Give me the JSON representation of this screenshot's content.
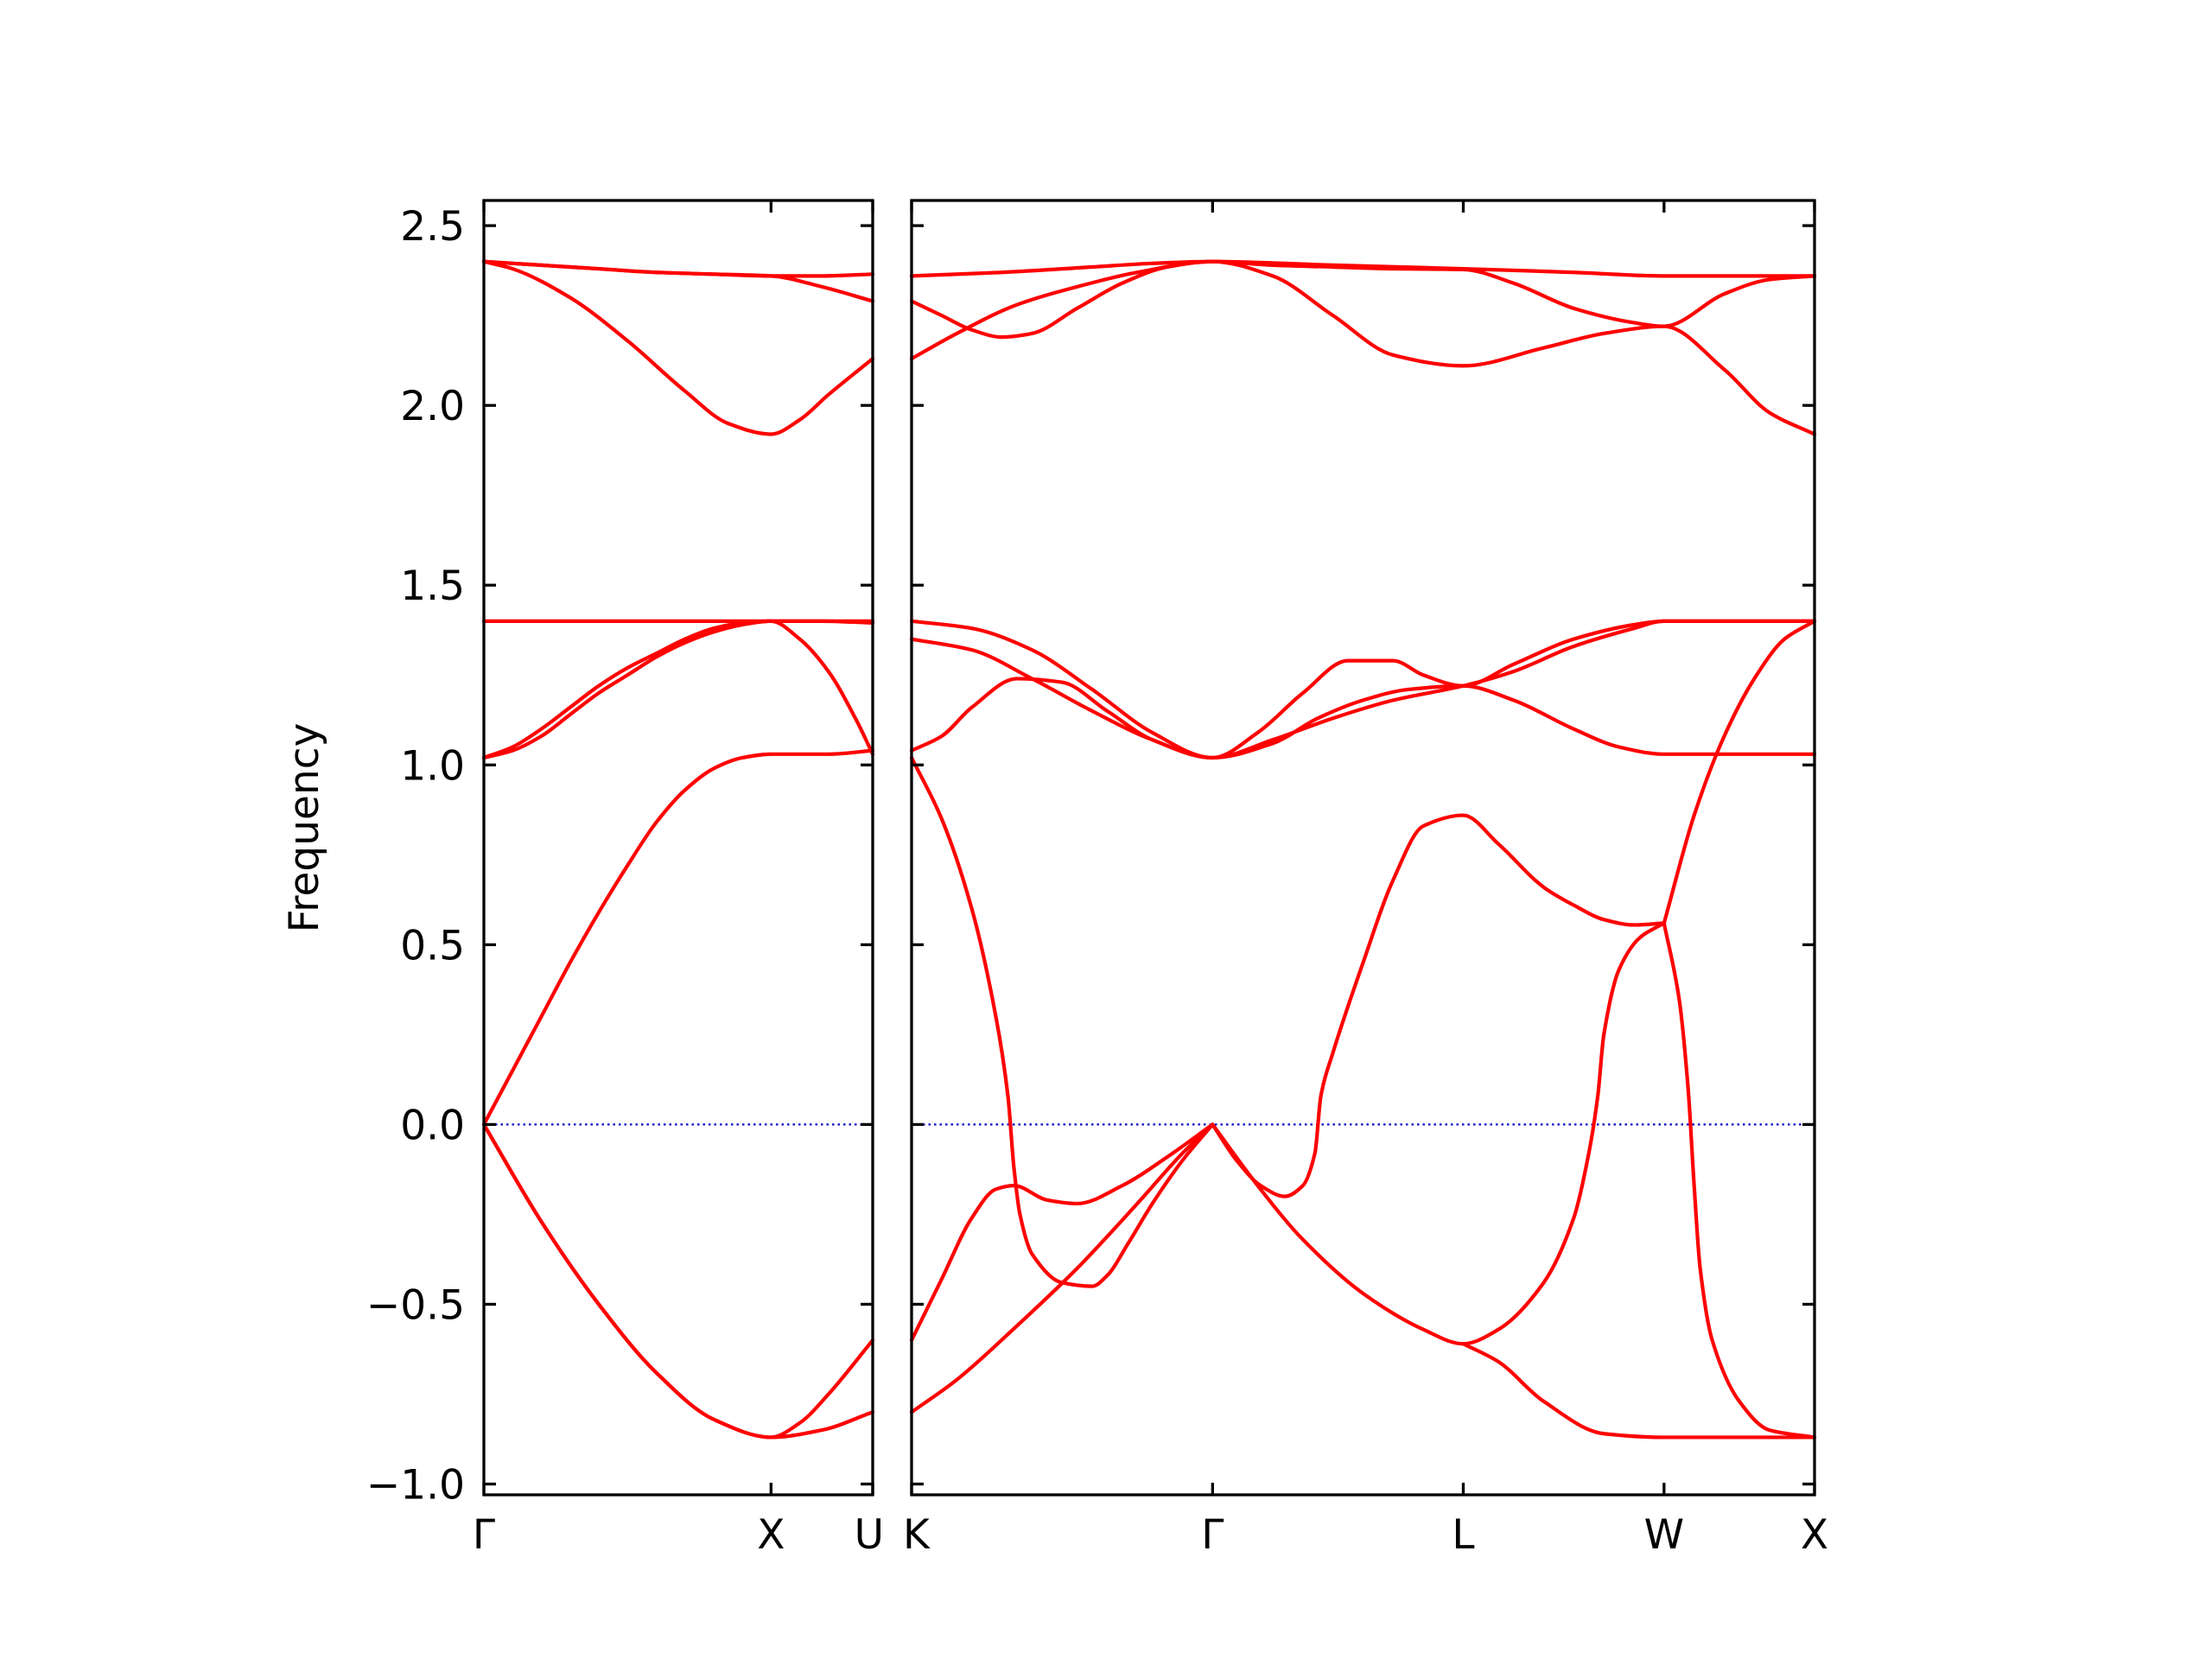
{
  "chart_data": {
    "type": "line",
    "title": "",
    "ylabel": "Frequency",
    "xlabel": "",
    "ylim": [
      -1.03,
      2.57
    ],
    "yticks": [
      -1.0,
      -0.5,
      0.0,
      0.5,
      1.0,
      1.5,
      2.0,
      2.5
    ],
    "ytick_labels": [
      "−1.0",
      "−0.5",
      "0.0",
      "0.5",
      "1.0",
      "1.5",
      "2.0",
      "2.5"
    ],
    "grid": false,
    "legend": "none",
    "colors": {
      "bands": "#ff0000",
      "zero_line": "#0000cc",
      "axes": "#000000"
    },
    "panels": [
      {
        "xlim": [
          0,
          1.354
        ],
        "xticks": [
          0.0,
          1.0,
          1.354
        ],
        "xtick_labels": [
          "Γ",
          "X",
          "U"
        ],
        "zero_line": true,
        "bands": [
          {
            "x": [
              0,
              0.2,
              0.4,
              0.6,
              0.8,
              1.0,
              1.177,
              1.354
            ],
            "y": [
              0,
              -0.27,
              -0.5,
              -0.69,
              -0.82,
              -0.87,
              -0.85,
              -0.8
            ]
          },
          {
            "x": [
              0,
              0.2,
              0.4,
              0.6,
              0.8,
              1.0,
              1.1,
              1.2,
              1.354
            ],
            "y": [
              0,
              -0.27,
              -0.5,
              -0.69,
              -0.82,
              -0.87,
              -0.83,
              -0.75,
              -0.6
            ]
          },
          {
            "x": [
              0,
              0.1,
              0.2,
              0.3,
              0.4,
              0.5,
              0.6,
              0.7,
              0.8,
              0.9,
              1.0,
              1.2,
              1.354
            ],
            "y": [
              0,
              0.15,
              0.3,
              0.45,
              0.59,
              0.72,
              0.84,
              0.93,
              0.99,
              1.02,
              1.03,
              1.03,
              1.04
            ]
          },
          {
            "x": [
              0,
              0.1,
              0.2,
              0.3,
              0.4,
              0.5,
              0.6,
              0.7,
              0.8,
              0.9,
              1.0,
              1.177,
              1.354
            ],
            "y": [
              1.02,
              1.05,
              1.1,
              1.16,
              1.22,
              1.27,
              1.31,
              1.35,
              1.38,
              1.395,
              1.4,
              1.4,
              1.395
            ]
          },
          {
            "x": [
              0,
              0.1,
              0.2,
              0.3,
              0.4,
              0.5,
              0.6,
              0.7,
              0.8,
              0.9,
              1.0,
              1.1,
              1.2,
              1.3,
              1.354
            ],
            "y": [
              1.02,
              1.04,
              1.08,
              1.14,
              1.2,
              1.25,
              1.3,
              1.34,
              1.37,
              1.39,
              1.4,
              1.35,
              1.26,
              1.12,
              1.03
            ]
          },
          {
            "x": [
              0,
              0.1,
              0.3,
              0.5,
              0.7,
              0.85,
              1.0,
              1.1,
              1.2,
              1.354
            ],
            "y": [
              2.4,
              2.38,
              2.3,
              2.18,
              2.04,
              1.95,
              1.92,
              1.96,
              2.03,
              2.13
            ]
          },
          {
            "x": [
              0,
              0.2,
              0.4,
              0.6,
              0.8,
              1.0,
              1.177,
              1.354
            ],
            "y": [
              2.4,
              2.39,
              2.38,
              2.37,
              2.365,
              2.36,
              2.36,
              2.365
            ]
          },
          {
            "x": [
              0,
              0.2,
              0.4,
              0.6,
              0.8,
              1.0,
              1.177,
              1.354
            ],
            "y": [
              2.4,
              2.39,
              2.38,
              2.37,
              2.365,
              2.36,
              2.33,
              2.29
            ]
          },
          {
            "x": [
              0,
              1.354
            ],
            "y": [
              1.4,
              1.4
            ]
          }
        ]
      },
      {
        "xlim": [
          0,
          3.0
        ],
        "xticks": [
          0.0,
          1.0,
          1.833,
          2.5,
          3.0
        ],
        "xtick_labels": [
          "K",
          "Γ",
          "L",
          "W",
          "X"
        ],
        "zero_line": true,
        "bands": [
          {
            "x": [
              0,
              0.15,
              0.35,
              0.55,
              0.75,
              0.9,
              1.0
            ],
            "y": [
              -0.8,
              -0.71,
              -0.56,
              -0.4,
              -0.22,
              -0.08,
              0
            ]
          },
          {
            "x": [
              0,
              0.1,
              0.2,
              0.28,
              0.34,
              0.45,
              0.55,
              0.7,
              0.85,
              1.0
            ],
            "y": [
              -0.6,
              -0.43,
              -0.26,
              -0.18,
              -0.17,
              -0.21,
              -0.22,
              -0.17,
              -0.09,
              0
            ]
          },
          {
            "x": [
              0,
              0.1,
              0.2,
              0.28,
              0.32,
              0.34,
              0.36,
              0.4,
              0.5,
              0.6,
              0.65,
              0.72,
              0.8,
              0.9,
              1.0
            ],
            "y": [
              1.02,
              0.85,
              0.6,
              0.3,
              0.08,
              -0.12,
              -0.25,
              -0.36,
              -0.44,
              -0.45,
              -0.42,
              -0.33,
              -0.22,
              -0.1,
              0
            ]
          },
          {
            "x": [
              1.0,
              1.08,
              1.16,
              1.24,
              1.3,
              1.34,
              1.36,
              1.4,
              1.5,
              1.6,
              1.7,
              1.833,
              1.95,
              2.1,
              2.2,
              2.3,
              2.4,
              2.5
            ],
            "y": [
              0,
              -0.1,
              -0.17,
              -0.2,
              -0.17,
              -0.08,
              0.08,
              0.2,
              0.45,
              0.68,
              0.83,
              0.86,
              0.78,
              0.66,
              0.61,
              0.57,
              0.555,
              0.56
            ]
          },
          {
            "x": [
              1.0,
              1.15,
              1.3,
              1.5,
              1.7,
              1.833,
              1.95,
              2.1,
              2.2,
              2.25,
              2.28,
              2.3,
              2.35,
              2.42,
              2.5
            ],
            "y": [
              0,
              -0.17,
              -0.32,
              -0.47,
              -0.57,
              -0.61,
              -0.57,
              -0.44,
              -0.26,
              -0.08,
              0.08,
              0.25,
              0.43,
              0.52,
              0.56
            ]
          },
          {
            "x": [
              1.833,
              1.95,
              2.1,
              2.3,
              2.5,
              2.7,
              3.0
            ],
            "y": [
              -0.61,
              -0.66,
              -0.77,
              -0.86,
              -0.87,
              -0.87,
              -0.87
            ]
          },
          {
            "x": [
              2.5,
              2.55,
              2.58,
              2.6,
              2.62,
              2.66,
              2.75,
              2.85,
              3.0
            ],
            "y": [
              0.56,
              0.35,
              0.1,
              -0.17,
              -0.4,
              -0.6,
              -0.77,
              -0.85,
              -0.87
            ]
          },
          {
            "x": [
              2.5,
              2.6,
              2.7,
              2.8,
              2.9,
              3.0
            ],
            "y": [
              0.56,
              0.86,
              1.08,
              1.24,
              1.35,
              1.4
            ]
          },
          {
            "x": [
              0,
              0.1,
              0.2,
              0.35,
              0.5,
              0.65,
              0.8,
              1.0,
              1.2,
              1.35,
              1.5,
              1.65,
              1.833,
              2.0,
              2.2,
              2.35,
              2.5,
              3.0
            ],
            "y": [
              1.04,
              1.08,
              1.16,
              1.24,
              1.23,
              1.15,
              1.07,
              1.02,
              1.06,
              1.13,
              1.18,
              1.21,
              1.22,
              1.18,
              1.1,
              1.05,
              1.03,
              1.03
            ]
          },
          {
            "x": [
              0,
              0.2,
              0.4,
              0.6,
              0.8,
              1.0,
              1.15,
              1.3,
              1.45,
              1.6,
              1.7,
              1.833,
              2.0,
              2.2,
              2.4,
              2.5,
              3.0
            ],
            "y": [
              1.35,
              1.32,
              1.24,
              1.15,
              1.07,
              1.02,
              1.09,
              1.2,
              1.29,
              1.29,
              1.25,
              1.22,
              1.28,
              1.35,
              1.39,
              1.4,
              1.4
            ]
          },
          {
            "x": [
              0,
              0.2,
              0.4,
              0.6,
              0.8,
              1.0,
              1.2,
              1.4,
              1.6,
              1.833,
              2.0,
              2.2,
              2.4,
              2.5,
              3.0
            ],
            "y": [
              1.4,
              1.38,
              1.32,
              1.21,
              1.09,
              1.02,
              1.07,
              1.13,
              1.18,
              1.22,
              1.26,
              1.33,
              1.38,
              1.4,
              1.4
            ]
          },
          {
            "x": [
              0,
              0.15,
              0.35,
              0.55,
              0.75,
              1.0,
              1.2,
              1.4,
              1.6,
              1.833,
              2.1,
              2.3,
              2.5,
              2.7,
              2.85,
              3.0
            ],
            "y": [
              2.13,
              2.2,
              2.28,
              2.33,
              2.37,
              2.4,
              2.36,
              2.25,
              2.14,
              2.11,
              2.16,
              2.2,
              2.22,
              2.1,
              1.98,
              1.92
            ]
          },
          {
            "x": [
              0,
              0.1,
              0.2,
              0.3,
              0.4,
              0.55,
              0.7,
              0.85,
              1.0,
              1.2,
              1.4,
              1.6,
              1.833,
              2.0,
              2.2,
              2.4,
              2.5,
              2.7,
              2.85,
              3.0
            ],
            "y": [
              2.29,
              2.25,
              2.21,
              2.19,
              2.2,
              2.27,
              2.34,
              2.385,
              2.4,
              2.39,
              2.385,
              2.38,
              2.378,
              2.34,
              2.27,
              2.23,
              2.22,
              2.31,
              2.35,
              2.36
            ]
          },
          {
            "x": [
              0,
              0.3,
              0.6,
              0.8,
              1.0,
              1.4,
              1.833,
              2.2,
              2.5,
              3.0
            ],
            "y": [
              2.36,
              2.37,
              2.385,
              2.395,
              2.4,
              2.39,
              2.38,
              2.37,
              2.36,
              2.36
            ]
          }
        ]
      }
    ]
  }
}
